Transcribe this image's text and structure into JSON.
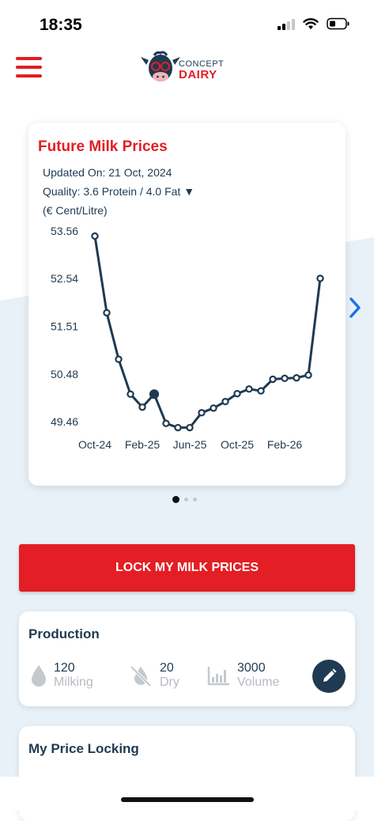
{
  "status_bar": {
    "time": "18:35"
  },
  "header": {
    "logo_top": "CONCEPT",
    "logo_bottom": "DAIRY"
  },
  "chart_card": {
    "title": "Future Milk Prices",
    "updated": "Updated On: 21 Oct, 2024",
    "quality": "Quality: 3.6 Protein / 4.0 Fat ▼",
    "unit": "(€ Cent/Litre)"
  },
  "chart_data": {
    "type": "line",
    "title": "Future Milk Prices",
    "ylabel": "(€ Cent/Litre)",
    "y_ticks": [
      "53.56",
      "52.54",
      "51.51",
      "50.48",
      "49.46"
    ],
    "y_tick_values": [
      53.56,
      52.54,
      51.51,
      50.48,
      49.46
    ],
    "x_ticks": [
      "Oct-24",
      "Feb-25",
      "Jun-25",
      "Oct-25",
      "Feb-26"
    ],
    "x_tick_index": [
      0,
      4,
      8,
      12,
      16
    ],
    "ylim": [
      49.46,
      53.56
    ],
    "values": [
      53.45,
      51.8,
      50.8,
      50.05,
      49.77,
      50.05,
      49.42,
      49.33,
      49.33,
      49.65,
      49.75,
      49.89,
      50.06,
      50.16,
      50.12,
      50.37,
      50.39,
      50.4,
      50.46,
      52.54
    ],
    "highlight_index": 5,
    "color": "#1f3a52"
  },
  "carousel": {
    "active_index": 0,
    "count": 3
  },
  "lock_button": {
    "label": "LOCK MY MILK PRICES"
  },
  "production": {
    "title": "Production",
    "stats": [
      {
        "icon": "drop-icon",
        "value": "120",
        "label": "Milking"
      },
      {
        "icon": "dry-icon",
        "value": "20",
        "label": "Dry"
      },
      {
        "icon": "bar-chart-icon",
        "value": "3000",
        "label": "Volume"
      }
    ]
  },
  "price_locking": {
    "title": "My Price Locking"
  },
  "colors": {
    "brand_red": "#e31e24",
    "navy": "#1f3a52",
    "light_bg": "#e9f1f8"
  }
}
